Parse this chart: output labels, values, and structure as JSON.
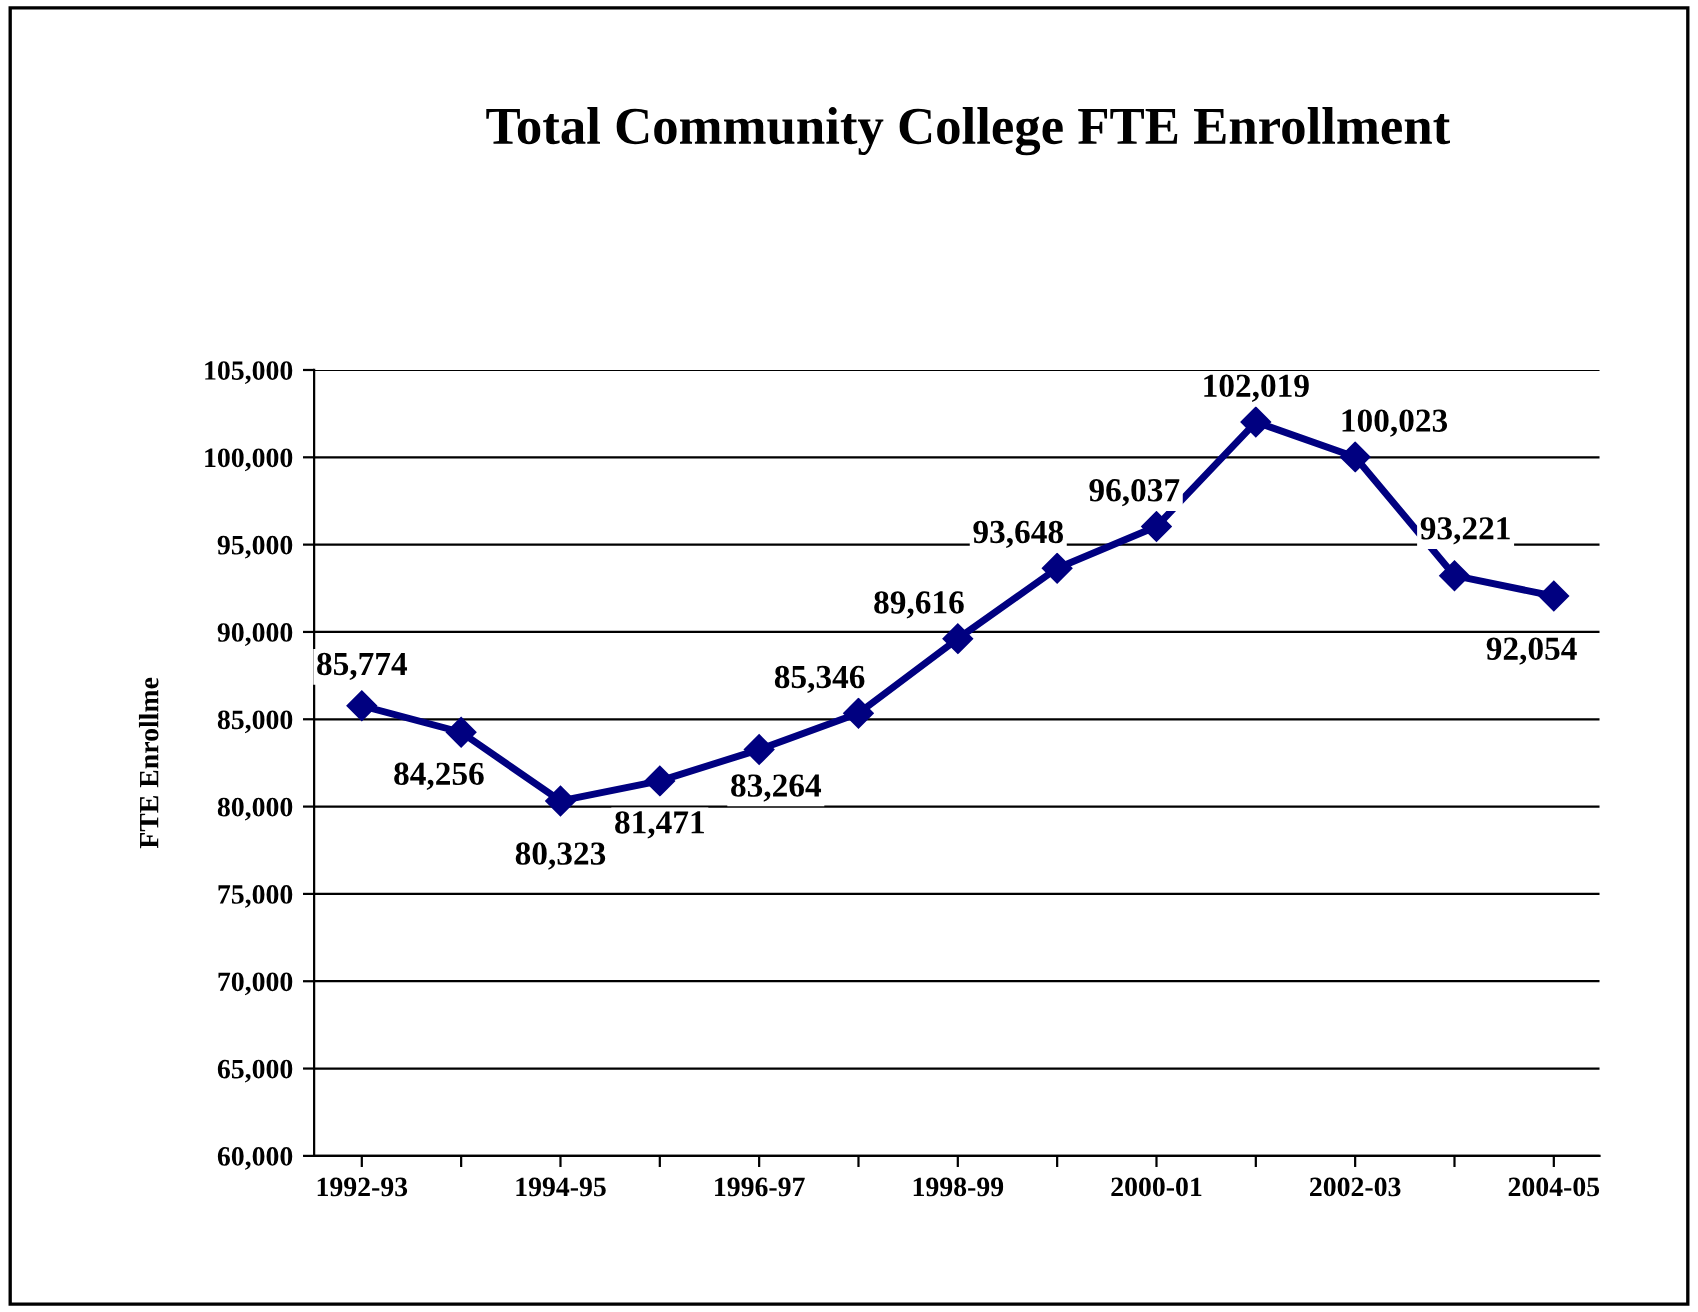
{
  "chart_data": {
    "type": "line",
    "title": "Total Community College FTE Enrollment",
    "ylabel": "FTE Enrollme",
    "categories": [
      "1992-93",
      null,
      "1994-95",
      null,
      "1996-97",
      null,
      "1998-99",
      null,
      "2000-01",
      null,
      "2002-03",
      null,
      "2004-05"
    ],
    "series": [
      {
        "color": "#000080",
        "values": [
          85774,
          84256,
          80323,
          81471,
          83264,
          85346,
          89616,
          93648,
          96037,
          102019,
          100023,
          93221,
          92054
        ]
      }
    ],
    "ylim": [
      60000,
      105000
    ],
    "yticks": [
      {
        "value": 60000,
        "label": "60,000"
      },
      {
        "value": 65000,
        "label": "65,000"
      },
      {
        "value": 70000,
        "label": "70,000"
      },
      {
        "value": 75000,
        "label": "75,000"
      },
      {
        "value": 80000,
        "label": "80,000"
      },
      {
        "value": 85000,
        "label": "85,000"
      },
      {
        "value": 90000,
        "label": "90,000"
      },
      {
        "value": 95000,
        "label": "95,000"
      },
      {
        "value": 100000,
        "label": "100,000"
      },
      {
        "value": 105000,
        "label": "105,000"
      }
    ],
    "value_labels": [
      "85,774",
      "84,256",
      "80,323",
      "81,471",
      "83,264",
      "85,346",
      "89,616",
      "93,648",
      "96,037",
      "102,019",
      "100,023",
      "93,221",
      "92,054"
    ],
    "grid": "y",
    "marker": "diamond",
    "line_style": "solid"
  }
}
